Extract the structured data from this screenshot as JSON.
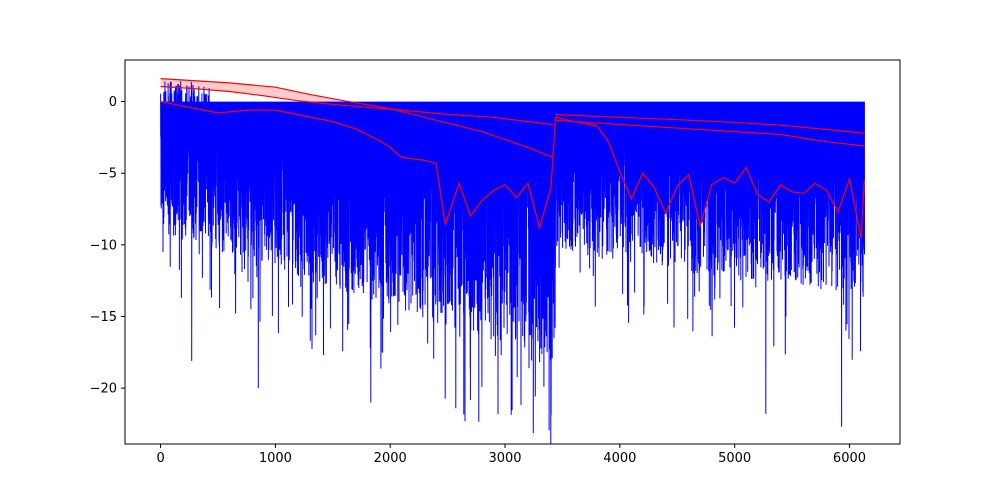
{
  "chart_data": {
    "type": "line",
    "title": "",
    "xlabel": "",
    "ylabel": "",
    "xlim": [
      -310,
      6440
    ],
    "ylim": [
      -23.9,
      2.9
    ],
    "grid": false,
    "legend": "none",
    "x_ticks": [
      {
        "value": 0,
        "label": "0"
      },
      {
        "value": 1000,
        "label": "1000"
      },
      {
        "value": 2000,
        "label": "2000"
      },
      {
        "value": 3000,
        "label": "3000"
      },
      {
        "value": 4000,
        "label": "4000"
      },
      {
        "value": 5000,
        "label": "5000"
      },
      {
        "value": 6000,
        "label": "6000"
      }
    ],
    "y_ticks": [
      {
        "value": 0,
        "label": "0"
      },
      {
        "value": -5,
        "label": "−5"
      },
      {
        "value": -10,
        "label": "−10"
      },
      {
        "value": -15,
        "label": "−15"
      },
      {
        "value": -20,
        "label": "−20"
      }
    ],
    "colors": {
      "signal": "#0000ff",
      "envelope": "#ff0000",
      "band_fill": "#ffcccc"
    },
    "series": [
      {
        "color": "#ff0000",
        "x": [
          0,
          600,
          1000,
          1300,
          1600,
          2000,
          2400,
          2800,
          3200,
          3420
        ],
        "values": [
          1.6,
          1.3,
          1.0,
          0.5,
          0.05,
          -0.5,
          -1.3,
          -2.1,
          -3.2,
          -3.9
        ]
      },
      {
        "color": "#ff0000",
        "x": [
          0,
          300,
          600,
          900,
          1200,
          1500,
          1800,
          2100,
          2500,
          2900,
          3200,
          3420
        ],
        "values": [
          1.05,
          0.9,
          0.7,
          0.4,
          0.05,
          -0.2,
          -0.4,
          -0.6,
          -0.9,
          -1.1,
          -1.4,
          -1.6
        ]
      },
      {
        "color": "#ff0000",
        "x": [
          3440,
          3700,
          4000,
          4300,
          4600,
          5000,
          5400,
          5800,
          6130
        ],
        "values": [
          -0.9,
          -1.0,
          -1.1,
          -1.2,
          -1.3,
          -1.45,
          -1.65,
          -1.95,
          -2.2
        ]
      },
      {
        "color": "#ff0000",
        "x": [
          3440,
          3700,
          4000,
          4300,
          4600,
          5000,
          5400,
          5800,
          6130
        ],
        "values": [
          -1.3,
          -1.45,
          -1.6,
          -1.75,
          -1.9,
          -2.1,
          -2.3,
          -2.8,
          -3.1
        ]
      },
      {
        "color": "#ff0000",
        "x": [
          0,
          250,
          500,
          750,
          1000,
          1250,
          1500,
          1700,
          1900,
          2000,
          2100,
          2200,
          2300,
          2400,
          2480,
          2600,
          2700,
          2800,
          2900,
          3000,
          3100,
          3200,
          3300,
          3400,
          3440,
          3600,
          3800,
          3900,
          4000,
          4100,
          4200,
          4300,
          4400,
          4500,
          4600,
          4700,
          4800,
          4900,
          5000,
          5100,
          5200,
          5300,
          5400,
          5500,
          5600,
          5700,
          5800,
          5900,
          6000,
          6100,
          6130
        ],
        "values": [
          0.0,
          -0.4,
          -0.8,
          -0.6,
          -0.6,
          -1.0,
          -1.4,
          -1.9,
          -2.7,
          -3.2,
          -3.9,
          -4.0,
          -4.1,
          -4.3,
          -8.6,
          -5.7,
          -8.0,
          -6.9,
          -6.2,
          -5.8,
          -6.7,
          -5.7,
          -8.8,
          -6.0,
          -1.1,
          -1.4,
          -1.7,
          -2.8,
          -4.9,
          -6.8,
          -5.0,
          -6.0,
          -7.8,
          -5.9,
          -5.1,
          -8.7,
          -5.8,
          -5.3,
          -5.7,
          -4.6,
          -6.5,
          -7.0,
          -5.8,
          -6.3,
          -6.4,
          -5.7,
          -6.2,
          -7.7,
          -5.4,
          -9.5,
          -5.5
        ]
      }
    ],
    "signal": {
      "color": "#0000ff",
      "description_x_extent": [
        0,
        6130
      ],
      "upper_values": 0.0,
      "min_points": [
        {
          "x": 20,
          "y": -10.5
        },
        {
          "x": 180,
          "y": -13.7
        },
        {
          "x": 270,
          "y": -18.1
        },
        {
          "x": 850,
          "y": -20.0
        },
        {
          "x": 1830,
          "y": -21.0
        },
        {
          "x": 2650,
          "y": -22.3
        },
        {
          "x": 3400,
          "y": -21.9
        },
        {
          "x": 5270,
          "y": -21.8
        },
        {
          "x": 5930,
          "y": -22.7
        },
        {
          "x": 6120,
          "y": -10.3
        }
      ]
    }
  }
}
